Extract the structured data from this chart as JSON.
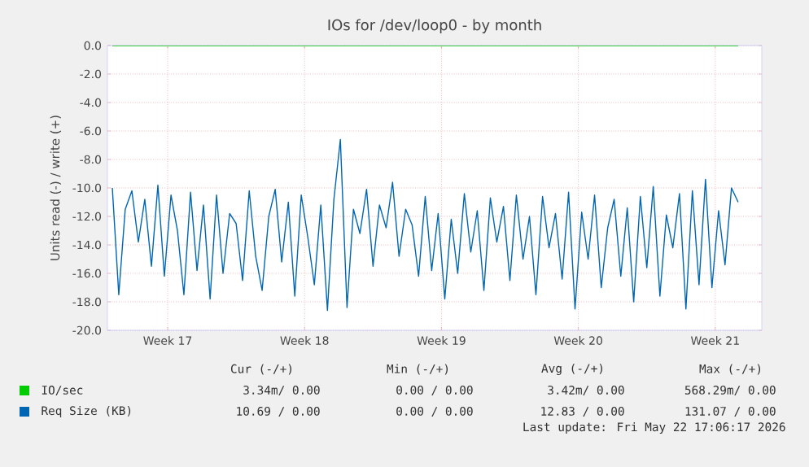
{
  "chart_data": {
    "type": "line",
    "title": "IOs for /dev/loop0 - by month",
    "ylabel": "Units read (-) / write (+)",
    "xlim": [
      "2026-04-20T10:00",
      "2026-05-23T21:00"
    ],
    "xticks": [
      {
        "value": "2026-04-23T12:00",
        "label": "Week 17"
      },
      {
        "value": "2026-04-30T12:00",
        "label": "Week 18"
      },
      {
        "value": "2026-05-07T12:00",
        "label": "Week 19"
      },
      {
        "value": "2026-05-14T12:00",
        "label": "Week 20"
      },
      {
        "value": "2026-05-21T12:00",
        "label": "Week 21"
      }
    ],
    "ylim": [
      -20,
      0
    ],
    "yticks": [
      {
        "value": 0,
        "label": "0.0"
      },
      {
        "value": -2,
        "label": "-2.0"
      },
      {
        "value": -4,
        "label": "-4.0"
      },
      {
        "value": -6,
        "label": "-6.0"
      },
      {
        "value": -8,
        "label": "-8.0"
      },
      {
        "value": -10,
        "label": "-10.0"
      },
      {
        "value": -12,
        "label": "-12.0"
      },
      {
        "value": -14,
        "label": "-14.0"
      },
      {
        "value": -16,
        "label": "-16.0"
      },
      {
        "value": -18,
        "label": "-18.0"
      },
      {
        "value": -20,
        "label": "-20.0"
      }
    ],
    "grid": true,
    "legend": "bottom",
    "x": [
      "2026-04-20T16:00",
      "2026-04-21T00:00",
      "2026-04-21T08:00",
      "2026-04-21T16:00",
      "2026-04-22T00:00",
      "2026-04-22T08:00",
      "2026-04-22T16:00",
      "2026-04-23T00:00",
      "2026-04-23T08:00",
      "2026-04-23T16:00",
      "2026-04-24T00:00",
      "2026-04-24T08:00",
      "2026-04-24T16:00",
      "2026-04-25T00:00",
      "2026-04-25T08:00",
      "2026-04-25T16:00",
      "2026-04-26T00:00",
      "2026-04-26T08:00",
      "2026-04-26T16:00",
      "2026-04-27T00:00",
      "2026-04-27T08:00",
      "2026-04-27T16:00",
      "2026-04-28T00:00",
      "2026-04-28T08:00",
      "2026-04-28T16:00",
      "2026-04-29T00:00",
      "2026-04-29T08:00",
      "2026-04-29T16:00",
      "2026-04-30T00:00",
      "2026-04-30T08:00",
      "2026-04-30T16:00",
      "2026-05-01T00:00",
      "2026-05-01T08:00",
      "2026-05-01T16:00",
      "2026-05-02T00:00",
      "2026-05-02T08:00",
      "2026-05-02T16:00",
      "2026-05-03T00:00",
      "2026-05-03T08:00",
      "2026-05-03T16:00",
      "2026-05-04T00:00",
      "2026-05-04T08:00",
      "2026-05-04T16:00",
      "2026-05-05T00:00",
      "2026-05-05T08:00",
      "2026-05-05T16:00",
      "2026-05-06T00:00",
      "2026-05-06T08:00",
      "2026-05-06T16:00",
      "2026-05-07T00:00",
      "2026-05-07T08:00",
      "2026-05-07T16:00",
      "2026-05-08T00:00",
      "2026-05-08T08:00",
      "2026-05-08T16:00",
      "2026-05-09T00:00",
      "2026-05-09T08:00",
      "2026-05-09T16:00",
      "2026-05-10T00:00",
      "2026-05-10T08:00",
      "2026-05-10T16:00",
      "2026-05-11T00:00",
      "2026-05-11T08:00",
      "2026-05-11T16:00",
      "2026-05-12T00:00",
      "2026-05-12T08:00",
      "2026-05-12T16:00",
      "2026-05-13T00:00",
      "2026-05-13T08:00",
      "2026-05-13T16:00",
      "2026-05-14T00:00",
      "2026-05-14T08:00",
      "2026-05-14T16:00",
      "2026-05-15T00:00",
      "2026-05-15T08:00",
      "2026-05-15T16:00",
      "2026-05-16T00:00",
      "2026-05-16T08:00",
      "2026-05-16T16:00",
      "2026-05-17T00:00",
      "2026-05-17T08:00",
      "2026-05-17T16:00",
      "2026-05-18T00:00",
      "2026-05-18T08:00",
      "2026-05-18T16:00",
      "2026-05-19T00:00",
      "2026-05-19T08:00",
      "2026-05-19T16:00",
      "2026-05-20T00:00",
      "2026-05-20T08:00",
      "2026-05-20T16:00",
      "2026-05-21T00:00",
      "2026-05-21T08:00",
      "2026-05-21T16:00",
      "2026-05-22T00:00",
      "2026-05-22T08:00",
      "2026-05-22T16:00"
    ],
    "series": [
      {
        "name": "IO/sec",
        "color": "#00cc00",
        "values": [
          0,
          0,
          0,
          0,
          0,
          0,
          0,
          0,
          0,
          0,
          0,
          0,
          0,
          0,
          0,
          0,
          0,
          0,
          0,
          0,
          0,
          0,
          0,
          0,
          0,
          0,
          0,
          0,
          0,
          0,
          0,
          0,
          0,
          0,
          0,
          0,
          0,
          0,
          0,
          0,
          0,
          0,
          0,
          0,
          0,
          0,
          0,
          0,
          0,
          0,
          0,
          0,
          0,
          0,
          0,
          0,
          0,
          0,
          0,
          0,
          0,
          0,
          0,
          0,
          0,
          0,
          0,
          0,
          0,
          0,
          0,
          0,
          0,
          0,
          0,
          0,
          0,
          0,
          0,
          0,
          0,
          0,
          0,
          0,
          0,
          0,
          0,
          0,
          0,
          0,
          0,
          0,
          0,
          0,
          0,
          0,
          0
        ]
      },
      {
        "name": "Req Size (KB)",
        "color": "#0066b3",
        "values": [
          -10.0,
          -17.5,
          -11.5,
          -10.2,
          -13.8,
          -10.8,
          -15.5,
          -9.8,
          -16.2,
          -10.5,
          -13.0,
          -17.5,
          -10.3,
          -15.8,
          -11.2,
          -17.8,
          -10.5,
          -16.0,
          -11.8,
          -12.5,
          -16.5,
          -10.2,
          -14.8,
          -17.2,
          -12.0,
          -10.1,
          -15.2,
          -11.0,
          -17.6,
          -10.5,
          -13.5,
          -16.8,
          -11.2,
          -18.6,
          -10.8,
          -6.6,
          -18.4,
          -11.5,
          -13.2,
          -10.1,
          -15.5,
          -11.2,
          -12.8,
          -9.6,
          -14.8,
          -11.5,
          -12.6,
          -16.2,
          -10.6,
          -15.8,
          -11.8,
          -17.8,
          -12.2,
          -16.0,
          -10.4,
          -14.5,
          -11.6,
          -17.2,
          -10.7,
          -13.8,
          -11.3,
          -16.5,
          -10.5,
          -15.0,
          -12.0,
          -17.5,
          -10.6,
          -14.2,
          -11.8,
          -16.4,
          -10.3,
          -18.5,
          -11.7,
          -15.0,
          -10.5,
          -17.0,
          -12.8,
          -10.8,
          -16.2,
          -11.4,
          -18.0,
          -10.6,
          -15.6,
          -9.9,
          -17.6,
          -11.9,
          -14.2,
          -10.4,
          -18.5,
          -10.2,
          -16.8,
          -9.4,
          -17.0,
          -11.6,
          -15.4,
          -10.0,
          -11.0
        ]
      }
    ],
    "annotations": [
      "Cur (-/+)",
      "Min (-/+)",
      "Avg (-/+)",
      "Max (-/+)",
      "3.34m/ 0.00",
      "0.00 / 0.00",
      "3.42m/ 0.00",
      "568.29m/ 0.00",
      "10.69 / 0.00",
      "0.00 / 0.00",
      "12.83 / 0.00",
      "131.07 / 0.00",
      "Last update: Fri May 22 17:06:17 2026"
    ]
  }
}
